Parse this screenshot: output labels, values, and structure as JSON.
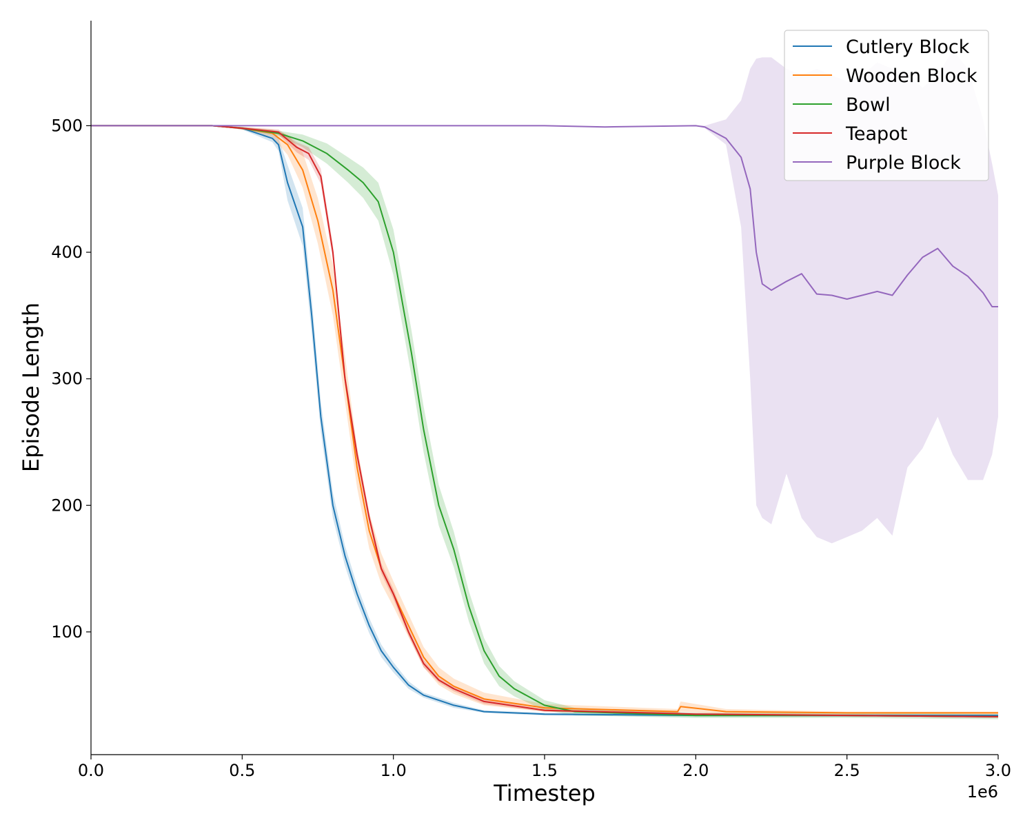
{
  "chart_data": {
    "type": "line",
    "title": "",
    "xlabel": "Timestep",
    "ylabel": "Episode Length",
    "x_offset_label": "1e6",
    "xlim": [
      0,
      3.0
    ],
    "ylim": [
      3,
      583
    ],
    "x_ticks": [
      0.0,
      0.5,
      1.0,
      1.5,
      2.0,
      2.5,
      3.0
    ],
    "x_tick_labels": [
      "0.0",
      "0.5",
      "1.0",
      "1.5",
      "2.0",
      "2.5",
      "3.0"
    ],
    "y_ticks": [
      100,
      200,
      300,
      400,
      500
    ],
    "y_tick_labels": [
      "100",
      "200",
      "300",
      "400",
      "500"
    ],
    "grid": false,
    "legend_position": "top-right",
    "legend_labels": [
      "Cutlery Block",
      "Wooden Block",
      "Bowl",
      "Teapot",
      "Purple Block"
    ],
    "series": [
      {
        "name": "Cutlery Block",
        "color": "#1f77b4",
        "x": [
          0,
          0.4,
          0.5,
          0.6,
          0.62,
          0.65,
          0.7,
          0.73,
          0.76,
          0.8,
          0.84,
          0.88,
          0.92,
          0.96,
          1.0,
          1.05,
          1.1,
          1.2,
          1.3,
          1.5,
          2.0,
          2.5,
          3.0
        ],
        "y": [
          500,
          500,
          498,
          490,
          485,
          455,
          420,
          350,
          270,
          200,
          160,
          130,
          105,
          85,
          72,
          58,
          50,
          42,
          37,
          35,
          34,
          34,
          34
        ],
        "band": [
          0,
          0,
          1,
          3,
          5,
          14,
          15,
          14,
          12,
          10,
          8,
          7,
          6,
          5,
          4,
          3,
          2,
          2,
          1,
          1,
          1,
          1,
          1
        ]
      },
      {
        "name": "Wooden Block",
        "color": "#ff7f0e",
        "x": [
          0,
          0.4,
          0.5,
          0.6,
          0.65,
          0.7,
          0.75,
          0.8,
          0.84,
          0.88,
          0.92,
          0.96,
          1.0,
          1.05,
          1.1,
          1.15,
          1.2,
          1.3,
          1.5,
          1.94,
          1.95,
          2.1,
          2.5,
          3.0
        ],
        "y": [
          500,
          500,
          498,
          494,
          485,
          465,
          425,
          370,
          300,
          230,
          180,
          150,
          130,
          105,
          80,
          65,
          57,
          47,
          40,
          37,
          41,
          37,
          36,
          36
        ],
        "band": [
          0,
          0,
          1,
          3,
          8,
          14,
          18,
          20,
          18,
          16,
          14,
          12,
          10,
          9,
          8,
          7,
          6,
          5,
          3,
          2,
          4,
          2,
          1,
          1
        ]
      },
      {
        "name": "Bowl",
        "color": "#2ca02c",
        "x": [
          0,
          0.4,
          0.5,
          0.62,
          0.7,
          0.78,
          0.85,
          0.9,
          0.95,
          1.0,
          1.03,
          1.06,
          1.1,
          1.15,
          1.2,
          1.25,
          1.3,
          1.35,
          1.4,
          1.5,
          1.6,
          2.0,
          2.5,
          3.0
        ],
        "y": [
          500,
          500,
          498,
          494,
          488,
          478,
          465,
          455,
          440,
          400,
          360,
          320,
          260,
          200,
          165,
          120,
          85,
          65,
          55,
          42,
          37,
          34,
          34,
          33
        ],
        "band": [
          0,
          0,
          1,
          2,
          5,
          8,
          10,
          12,
          15,
          18,
          18,
          18,
          18,
          16,
          14,
          12,
          10,
          8,
          6,
          4,
          3,
          2,
          2,
          2
        ]
      },
      {
        "name": "Teapot",
        "color": "#d62728",
        "x": [
          0,
          0.4,
          0.5,
          0.62,
          0.68,
          0.72,
          0.76,
          0.8,
          0.84,
          0.88,
          0.92,
          0.96,
          1.0,
          1.05,
          1.1,
          1.15,
          1.2,
          1.3,
          1.5,
          2.0,
          2.5,
          3.0
        ],
        "y": [
          500,
          500,
          498,
          495,
          483,
          478,
          460,
          400,
          300,
          240,
          190,
          150,
          130,
          100,
          75,
          62,
          55,
          45,
          38,
          35,
          34,
          33
        ],
        "band": [
          0,
          0,
          1,
          2,
          4,
          5,
          6,
          6,
          5,
          5,
          4,
          4,
          4,
          3,
          3,
          2,
          2,
          2,
          1,
          1,
          1,
          1
        ]
      },
      {
        "name": "Purple Block",
        "color": "#9467bd",
        "x": [
          0,
          1.5,
          1.7,
          2.0,
          2.03,
          2.1,
          2.15,
          2.18,
          2.2,
          2.22,
          2.25,
          2.3,
          2.35,
          2.4,
          2.45,
          2.5,
          2.55,
          2.6,
          2.65,
          2.7,
          2.75,
          2.8,
          2.85,
          2.9,
          2.95,
          2.98,
          3.0
        ],
        "y": [
          500,
          500,
          499,
          500,
          499,
          490,
          475,
          450,
          400,
          375,
          370,
          377,
          383,
          367,
          366,
          363,
          366,
          369,
          366,
          382,
          396,
          403,
          389,
          381,
          368,
          357,
          357
        ],
        "lower": [
          500,
          500,
          499,
          500,
          498,
          485,
          420,
          300,
          200,
          190,
          185,
          225,
          190,
          175,
          170,
          175,
          180,
          190,
          176,
          230,
          245,
          270,
          240,
          220,
          220,
          240,
          270
        ],
        "upper": [
          500,
          500,
          499,
          500,
          500,
          505,
          520,
          545,
          553,
          554,
          554,
          545,
          540,
          545,
          540,
          535,
          540,
          550,
          545,
          540,
          530,
          540,
          560,
          545,
          505,
          470,
          445
        ]
      }
    ]
  }
}
